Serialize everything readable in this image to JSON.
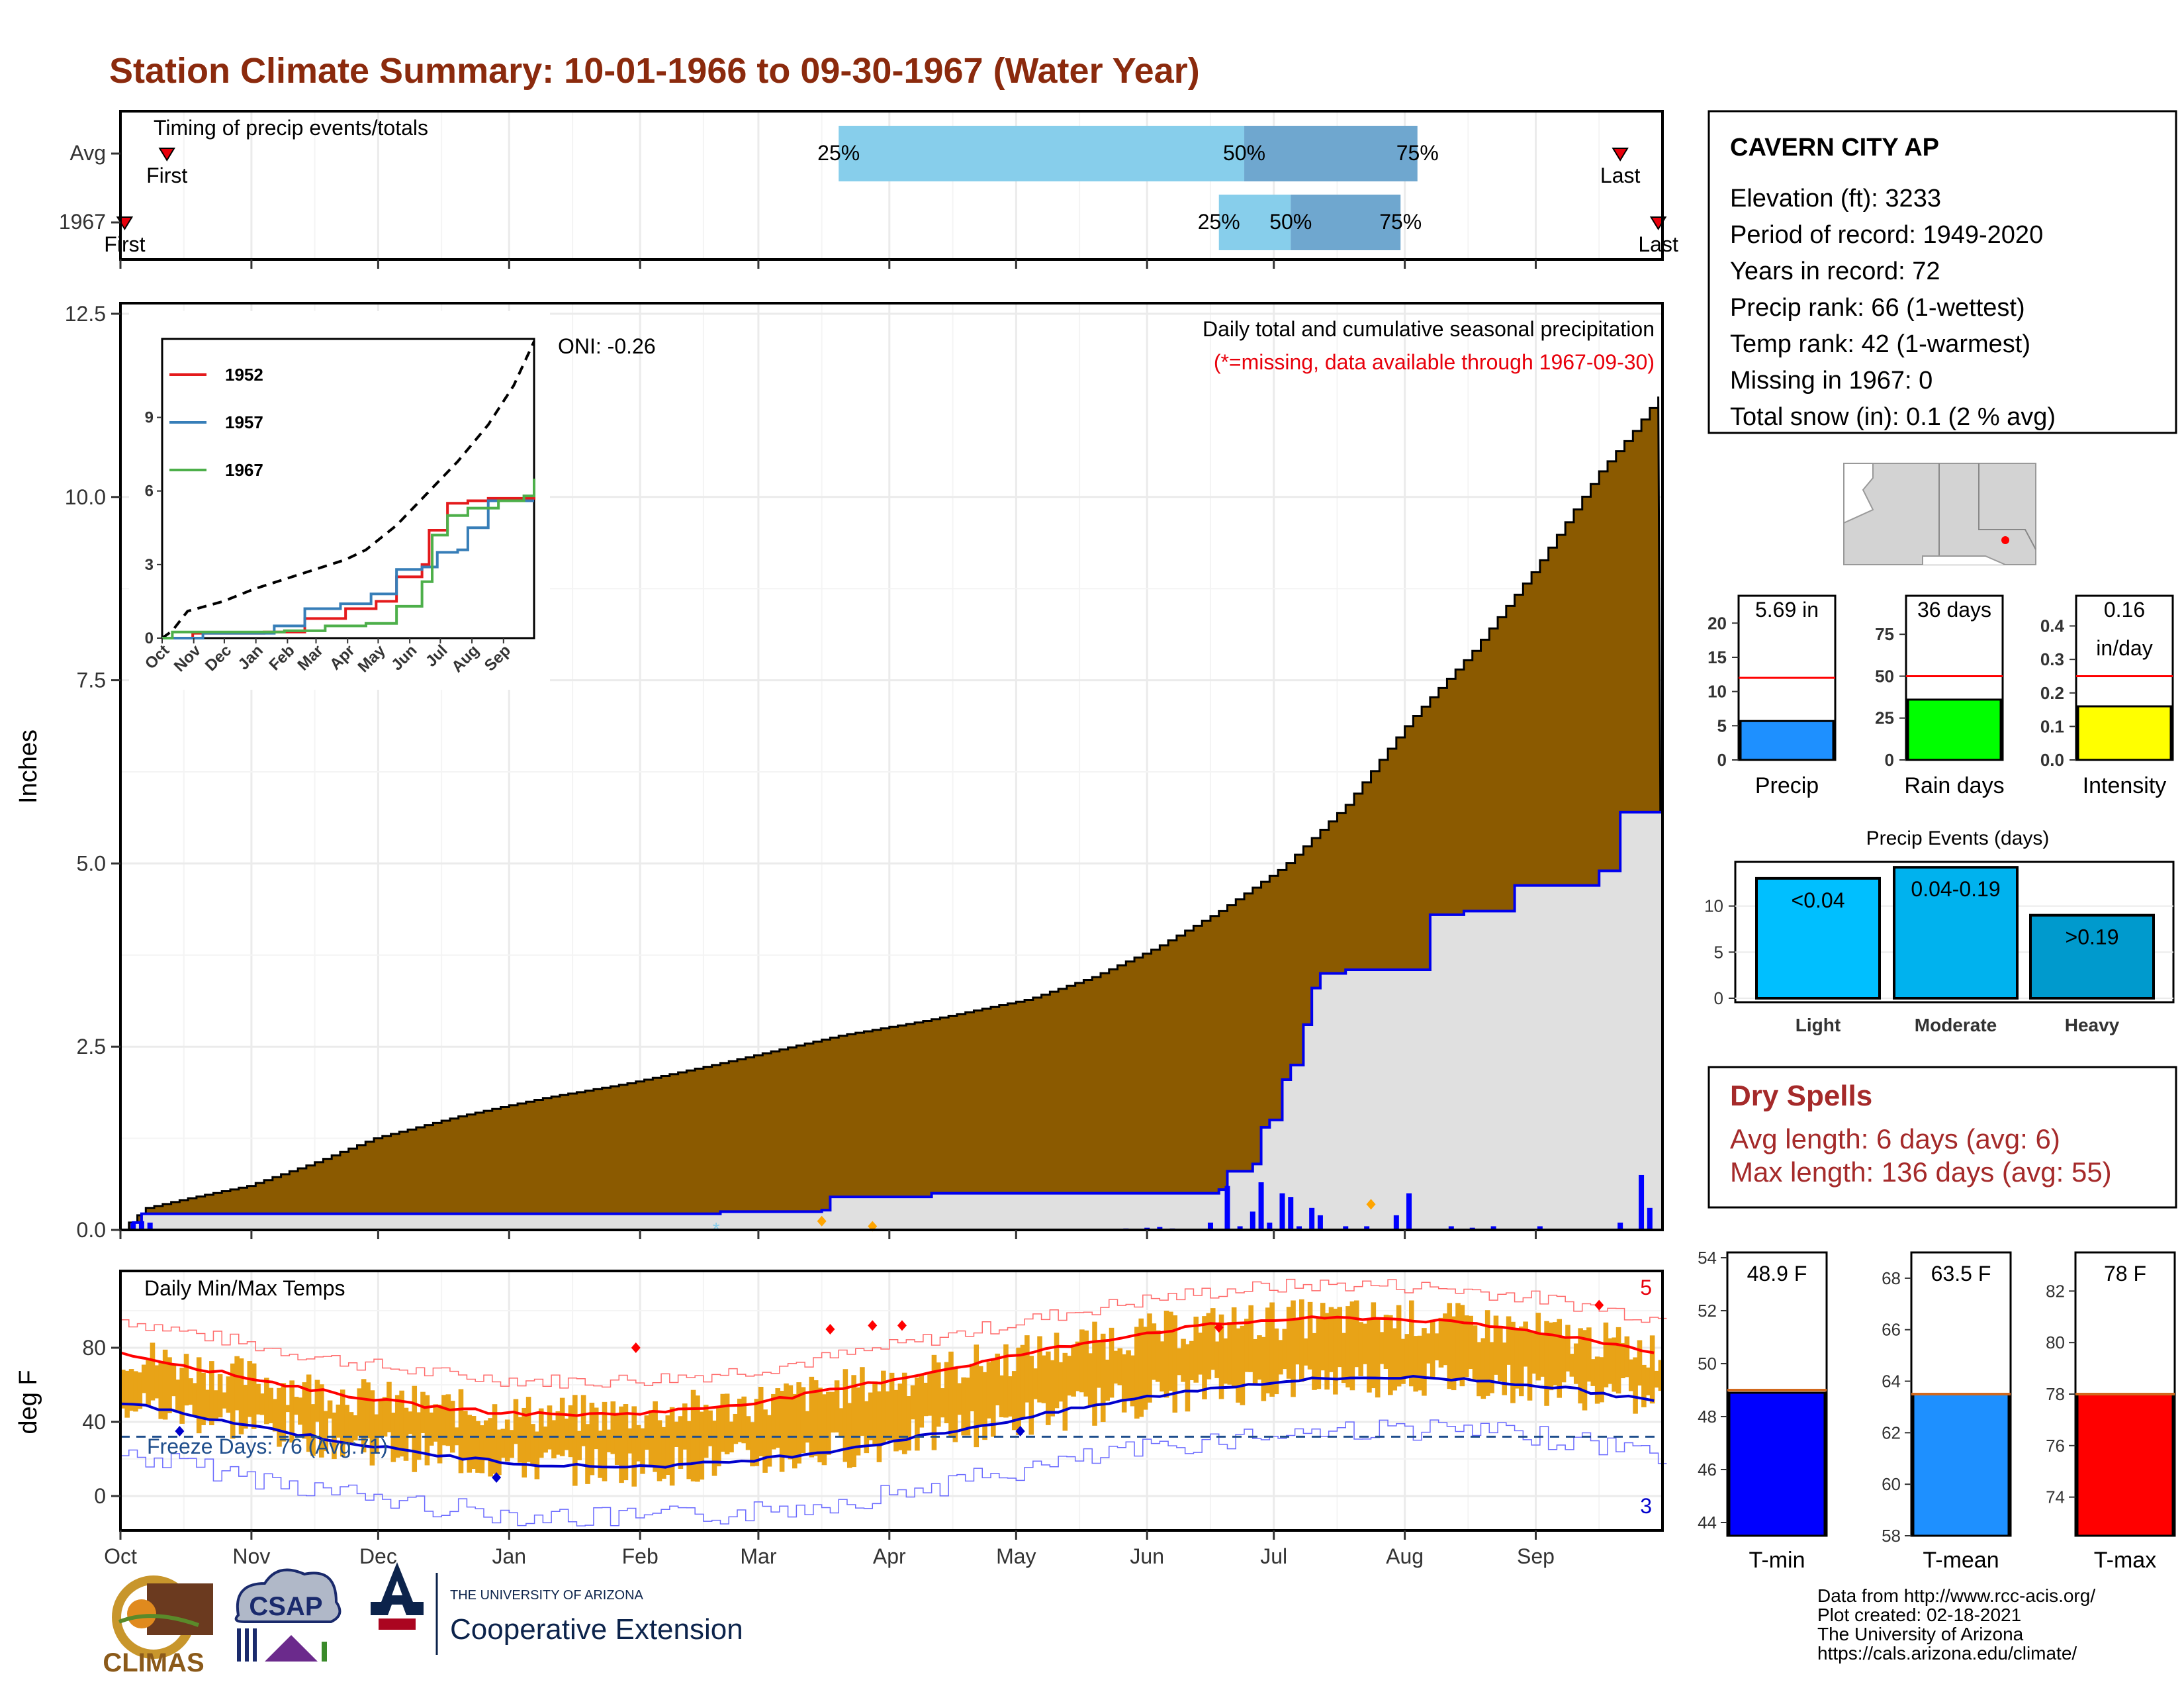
{
  "page": {
    "title": "Station Climate Summary: 10-01-1966 to 09-30-1967 (Water Year)",
    "title_color": "#8b2a0d"
  },
  "timing": {
    "title": "Timing of precip events/totals",
    "rows": [
      {
        "label": "Avg",
        "first": "First",
        "last": "Last",
        "pct25": "25%",
        "pct50": "50%",
        "pct75": "75%",
        "first_day": 11,
        "last_day": 355,
        "p25_day": 170,
        "p50_day": 266,
        "p75_day": 307
      },
      {
        "label": "1967",
        "first": "First",
        "last": "Last",
        "pct25": "25%",
        "pct50": "50%",
        "pct75": "75%",
        "first_day": 1,
        "last_day": 364,
        "p25_day": 260,
        "p50_day": 277,
        "p75_day": 303
      }
    ],
    "colors": {
      "light": "#87ceeb",
      "dark": "#6fa7cf"
    }
  },
  "station": {
    "name": "CAVERN CITY AP",
    "lines": [
      "Elevation (ft): 3233",
      "Period of record: 1949-2020",
      "Years in record: 72",
      "Precip rank: 66 (1-wettest)",
      "Temp rank: 42 (1-warmest)",
      "Missing in 1967: 0",
      "Total snow (in): 0.1 (2 % avg)"
    ]
  },
  "precip": {
    "ylabel": "Inches",
    "header_line1": "Daily total and cumulative seasonal precipitation",
    "header_line2": "(*=missing, data available through 1967-09-30)",
    "header_line2_color": "#e8000b",
    "oni": "ONI: -0.26",
    "month_ticks": [
      "Oct",
      "Nov",
      "Dec",
      "Jan",
      "Feb",
      "Mar",
      "Apr",
      "May",
      "Jun",
      "Jul",
      "Aug",
      "Sep"
    ],
    "y_ticks": [
      "0.0",
      "2.5",
      "5.0",
      "7.5",
      "10.0",
      "12.5"
    ],
    "colors": {
      "avg_fill": "#8b5a00",
      "year_fill": "#e0e0e0",
      "year_line": "#0000ee",
      "daily_bar": "#0000ff"
    }
  },
  "inset": {
    "legend": [
      {
        "name": "1952",
        "color": "#e41a1c"
      },
      {
        "name": "1957",
        "color": "#377eb8"
      },
      {
        "name": "1967",
        "color": "#4daf4a"
      }
    ],
    "y_ticks": [
      "0",
      "3",
      "6",
      "9"
    ],
    "x_ticks": [
      "Oct",
      "Nov",
      "Dec",
      "Jan",
      "Feb",
      "Mar",
      "Apr",
      "May",
      "Jun",
      "Jul",
      "Aug",
      "Sep"
    ]
  },
  "temps": {
    "title": "Daily Min/Max Temps",
    "ylabel": "deg F",
    "y_ticks": [
      "0",
      "40",
      "80"
    ],
    "freeze_label": "Freeze Days: 76 (Avg:71)",
    "record_high_count": "5",
    "record_low_count": "3",
    "month_ticks": [
      "Oct",
      "Nov",
      "Dec",
      "Jan",
      "Feb",
      "Mar",
      "Apr",
      "May",
      "Jun",
      "Jul",
      "Aug",
      "Sep"
    ],
    "colors": {
      "bars": "#e8a317",
      "max_line": "#ff0000",
      "min_line": "#0000cc",
      "freeze": "#1f4e8c"
    }
  },
  "summary_bars": [
    {
      "label": "Precip",
      "value_label": "5.69 in",
      "value": 5.69,
      "avg": 12,
      "ymax": 24,
      "ticks": [
        "0",
        "5",
        "10",
        "15",
        "20"
      ],
      "color": "#1e90ff"
    },
    {
      "label": "Rain days",
      "value_label": "36 days",
      "value": 36,
      "avg": 50,
      "ymax": 98,
      "ticks": [
        "0",
        "25",
        "50",
        "75"
      ],
      "color": "#00ff00"
    },
    {
      "label": "Intensity",
      "value_label": "0.16",
      "value_label2": "in/day",
      "value": 0.16,
      "avg": 0.25,
      "ymax": 0.49,
      "ticks": [
        "0.0",
        "0.1",
        "0.2",
        "0.3",
        "0.4"
      ],
      "color": "#ffff00"
    }
  ],
  "precip_events": {
    "title": "Precip Events (days)",
    "ticks": [
      "0",
      "5",
      "10"
    ],
    "bars": [
      {
        "label": "Light",
        "value_label": "<0.04",
        "value": 13,
        "color": "#00bfff"
      },
      {
        "label": "Moderate",
        "value_label": "0.04-0.19",
        "value": 14.2,
        "color": "#00b2ee"
      },
      {
        "label": "Heavy",
        "value_label": ">0.19",
        "value": 9,
        "color": "#009acd"
      }
    ]
  },
  "dry_spells": {
    "title": "Dry Spells",
    "avg_line": "Avg length: 6 days (avg: 6)",
    "max_line": "Max length: 136 days (avg: 55)",
    "color": "#a52a2a"
  },
  "temp_summary": [
    {
      "label": "T-min",
      "value_label": "48.9 F",
      "value": 48.9,
      "avg": 49,
      "ymin": 43.5,
      "ymax": 54.2,
      "ticks": [
        "44",
        "46",
        "48",
        "50",
        "52",
        "54"
      ],
      "color": "#0000ff"
    },
    {
      "label": "T-mean",
      "value_label": "63.5 F",
      "value": 63.5,
      "avg": 63.5,
      "ymin": 58,
      "ymax": 69,
      "ticks": [
        "58",
        "60",
        "62",
        "64",
        "66",
        "68"
      ],
      "color": "#1e90ff"
    },
    {
      "label": "T-max",
      "value_label": "78 F",
      "value": 78,
      "avg": 78,
      "ymin": 72.5,
      "ymax": 83.5,
      "ticks": [
        "74",
        "76",
        "78",
        "80",
        "82"
      ],
      "color": "#ff0000"
    }
  ],
  "credits": [
    "Data from http://www.rcc-acis.org/",
    "Plot created: 02-18-2021",
    "The University of Arizona",
    "https://cals.arizona.edu/climate/"
  ],
  "logos": {
    "climas": "CLIMAS",
    "csap": "CSAP",
    "ua_small": "THE UNIVERSITY OF ARIZONA",
    "ua_big": "Cooperative Extension"
  }
}
